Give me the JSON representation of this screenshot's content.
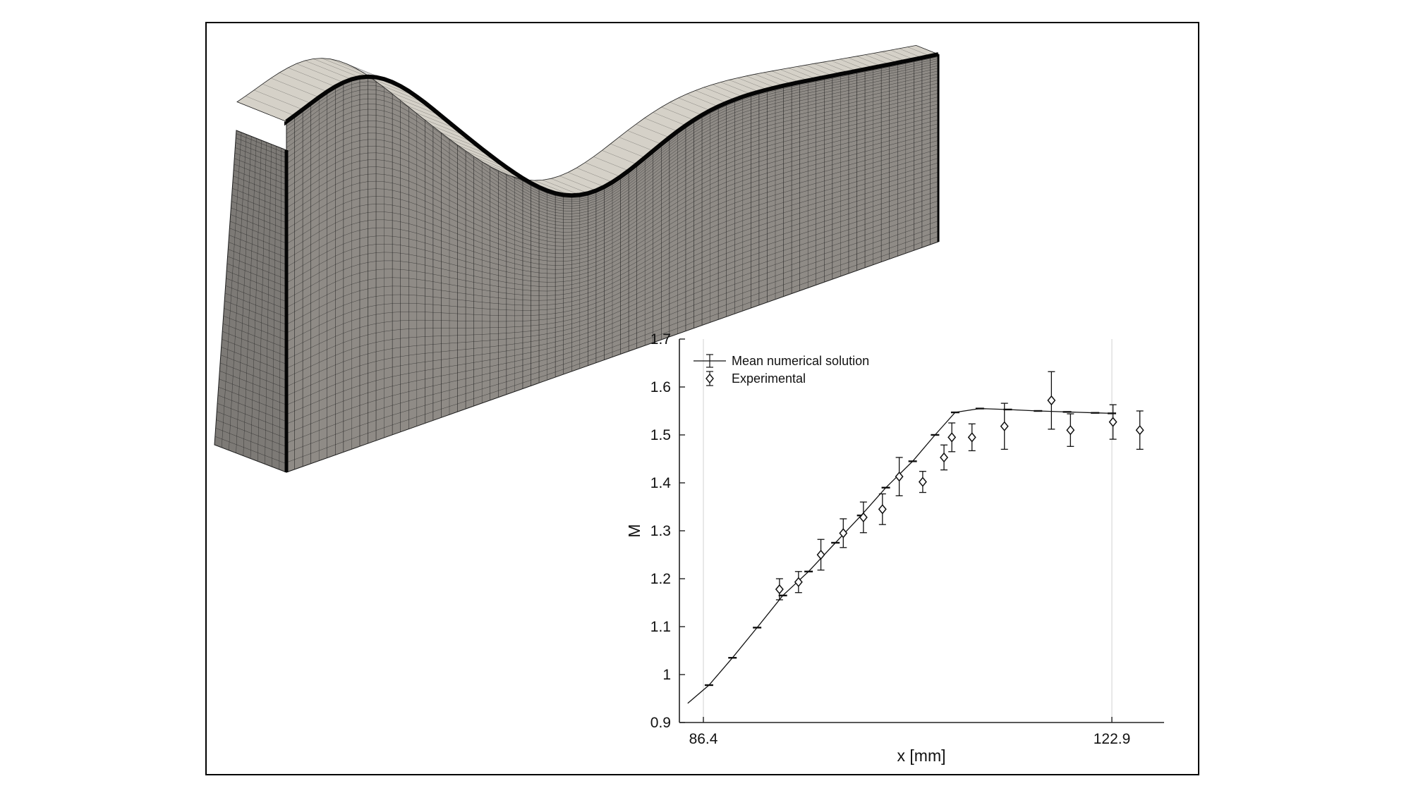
{
  "chart_data": {
    "type": "line",
    "title": "",
    "xlabel": "x [mm]",
    "ylabel": "M",
    "xlim": [
      85.0,
      127.0
    ],
    "ylim": [
      0.9,
      1.7
    ],
    "x_ticks": [
      86.4,
      122.9
    ],
    "x_tick_labels": [
      "86.4",
      "122.9"
    ],
    "y_ticks": [
      0.9,
      1.0,
      1.1,
      1.2,
      1.3,
      1.4,
      1.5,
      1.6,
      1.7
    ],
    "y_tick_labels": [
      "0.9",
      "1",
      "1.1",
      "1.2",
      "1.3",
      "1.4",
      "1.5",
      "1.6",
      "1.7"
    ],
    "x_gridlines": [
      86.4,
      122.9
    ],
    "legend_position": "top-left",
    "series": [
      {
        "name": "Mean numerical solution",
        "style": "line-errorbar",
        "x": [
          85.0,
          86.9,
          89.0,
          91.2,
          93.5,
          95.8,
          98.2,
          100.5,
          102.7,
          105.1,
          107.1,
          108.9,
          111.1,
          113.6,
          116.3,
          118.9,
          121.4,
          122.9
        ],
        "y": [
          0.94,
          0.978,
          1.035,
          1.098,
          1.165,
          1.215,
          1.275,
          1.332,
          1.39,
          1.445,
          1.5,
          1.547,
          1.555,
          1.553,
          1.55,
          1.548,
          1.546,
          1.545
        ],
        "err": [
          0.0,
          0.002,
          0.002,
          0.002,
          0.002,
          0.002,
          0.003,
          0.003,
          0.003,
          0.003,
          0.003,
          0.003,
          0.003,
          0.003,
          0.003,
          0.003,
          0.003,
          0.003
        ]
      },
      {
        "name": "Experimental",
        "style": "diamond-errorbar",
        "x": [
          93.2,
          94.9,
          96.9,
          98.9,
          100.7,
          102.4,
          103.9,
          106.0,
          107.9,
          108.6,
          110.4,
          113.3,
          117.5,
          119.2,
          123.0,
          125.4
        ],
        "y": [
          1.178,
          1.193,
          1.25,
          1.295,
          1.328,
          1.345,
          1.413,
          1.402,
          1.453,
          1.495,
          1.495,
          1.518,
          1.572,
          1.51,
          1.527,
          1.51
        ],
        "err": [
          0.022,
          0.022,
          0.032,
          0.03,
          0.032,
          0.032,
          0.04,
          0.022,
          0.026,
          0.03,
          0.028,
          0.048,
          0.06,
          0.034,
          0.036,
          0.04
        ]
      }
    ],
    "mesh": {
      "description_visible": "3D structured mesh of a nozzle channel",
      "face_color": "#8f8b86",
      "top_color": "#d5d1c8",
      "line_color": "#1e1e1e"
    }
  }
}
